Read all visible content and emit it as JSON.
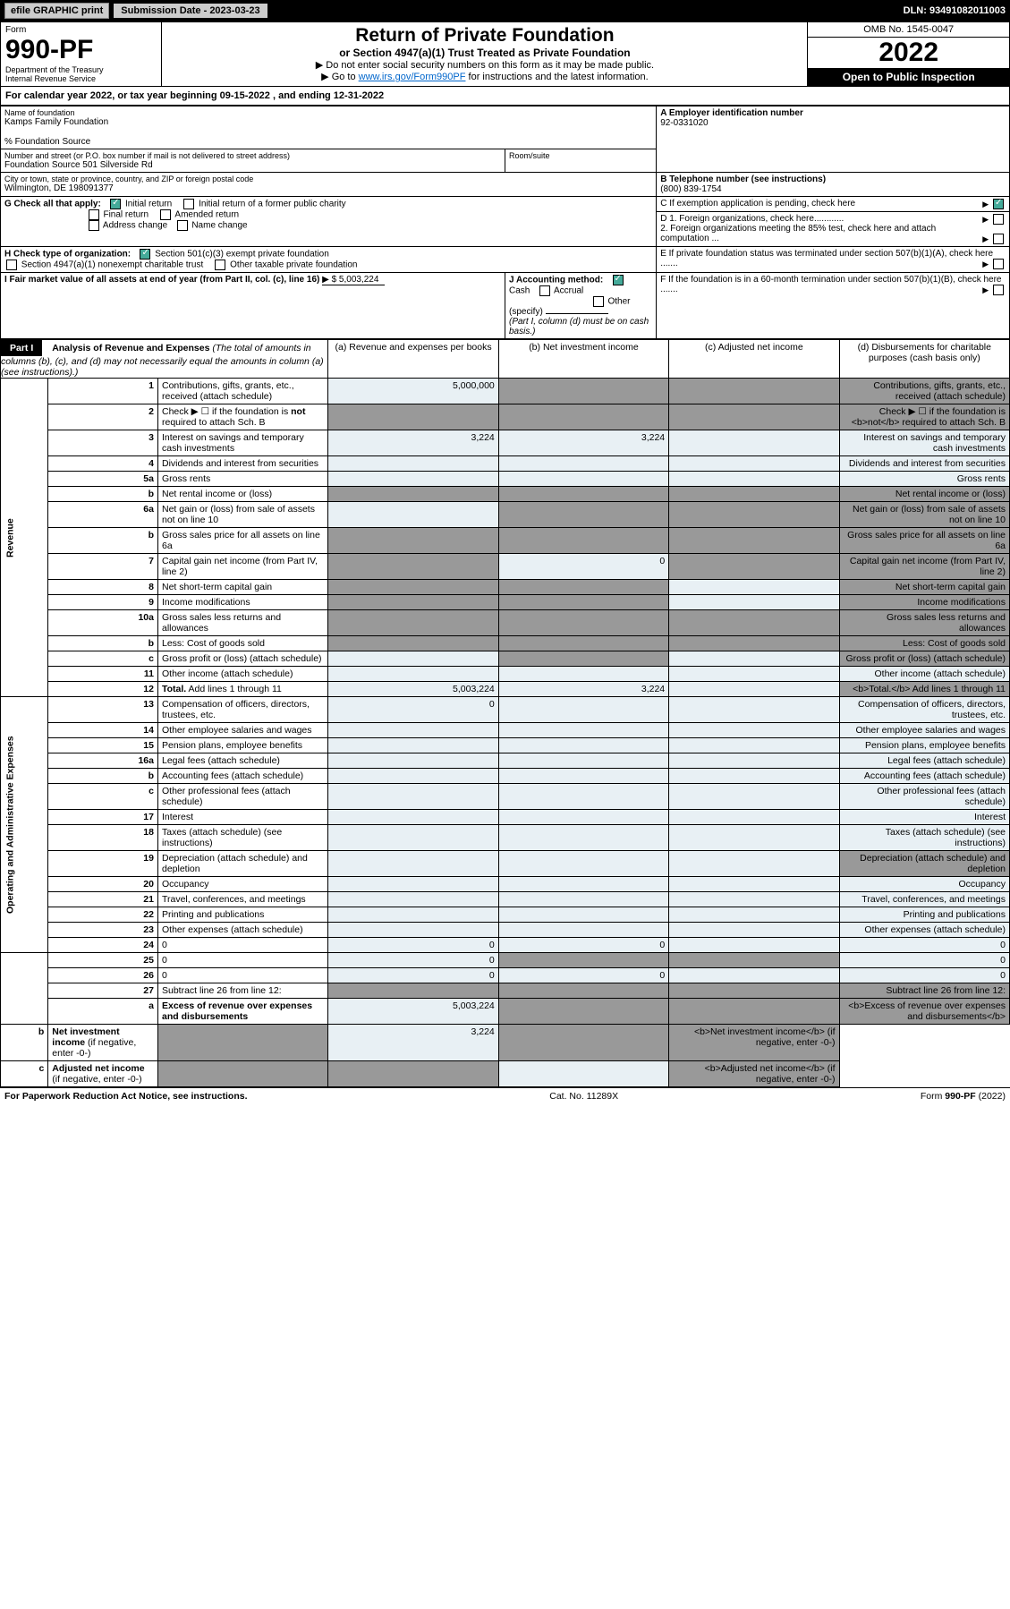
{
  "header": {
    "efile_btn": "efile GRAPHIC print",
    "sub_date_label": "Submission Date - 2023-03-23",
    "dln": "DLN: 93491082011003"
  },
  "top": {
    "form_label": "Form",
    "form_num": "990-PF",
    "dept": "Department of the Treasury",
    "irs": "Internal Revenue Service",
    "title": "Return of Private Foundation",
    "subtitle": "or Section 4947(a)(1) Trust Treated as Private Foundation",
    "note1": "▶ Do not enter social security numbers on this form as it may be made public.",
    "note2_pre": "▶ Go to ",
    "note2_link": "www.irs.gov/Form990PF",
    "note2_post": " for instructions and the latest information.",
    "omb": "OMB No. 1545-0047",
    "year": "2022",
    "open": "Open to Public Inspection"
  },
  "cal_year": "For calendar year 2022, or tax year beginning 09-15-2022                          , and ending 12-31-2022",
  "info": {
    "name_label": "Name of foundation",
    "name": "Kamps Family Foundation",
    "care_of": "% Foundation Source",
    "addr_label": "Number and street (or P.O. box number if mail is not delivered to street address)",
    "addr": "Foundation Source 501 Silverside Rd",
    "room_label": "Room/suite",
    "city_label": "City or town, state or province, country, and ZIP or foreign postal code",
    "city": "Wilmington, DE  198091377",
    "ein_label": "A Employer identification number",
    "ein": "92-0331020",
    "phone_label": "B Telephone number (see instructions)",
    "phone": "(800) 839-1754",
    "c_label": "C If exemption application is pending, check here",
    "d1_label": "D 1. Foreign organizations, check here............",
    "d2_label": "2. Foreign organizations meeting the 85% test, check here and attach computation ...",
    "e_label": "E  If private foundation status was terminated under section 507(b)(1)(A), check here .......",
    "f_label": "F  If the foundation is in a 60-month termination under section 507(b)(1)(B), check here .......",
    "g_label": "G Check all that apply:",
    "g_opts": [
      "Initial return",
      "Initial return of a former public charity",
      "Final return",
      "Amended return",
      "Address change",
      "Name change"
    ],
    "h_label": "H Check type of organization:",
    "h_opts": [
      "Section 501(c)(3) exempt private foundation",
      "Section 4947(a)(1) nonexempt charitable trust",
      "Other taxable private foundation"
    ],
    "i_label": "I Fair market value of all assets at end of year (from Part II, col. (c), line 16)",
    "i_val": "▶ $  5,003,224",
    "j_label": "J Accounting method:",
    "j_opts": [
      "Cash",
      "Accrual",
      "Other (specify)"
    ],
    "j_note": "(Part I, column (d) must be on cash basis.)"
  },
  "part1": {
    "label": "Part I",
    "title": "Analysis of Revenue and Expenses",
    "title_note": " (The total of amounts in columns (b), (c), and (d) may not necessarily equal the amounts in column (a) (see instructions).)",
    "col_a": "(a)   Revenue and expenses per books",
    "col_b": "(b)   Net investment income",
    "col_c": "(c)   Adjusted net income",
    "col_d": "(d)   Disbursements for charitable purposes (cash basis only)",
    "revenue_label": "Revenue",
    "expenses_label": "Operating and Administrative Expenses"
  },
  "rows": [
    {
      "n": "1",
      "d": "Contributions, gifts, grants, etc., received (attach schedule)",
      "a": "5,000,000",
      "b_grey": true,
      "c_grey": true,
      "d_grey": true
    },
    {
      "n": "2",
      "d": "Check ▶ ☐ if the foundation is <b>not</b> required to attach Sch. B",
      "a_grey": true,
      "b_grey": true,
      "c_grey": true,
      "d_grey": true
    },
    {
      "n": "3",
      "d": "Interest on savings and temporary cash investments",
      "a": "3,224",
      "b": "3,224"
    },
    {
      "n": "4",
      "d": "Dividends and interest from securities"
    },
    {
      "n": "5a",
      "d": "Gross rents"
    },
    {
      "n": "b",
      "d": "Net rental income or (loss)",
      "a_grey": true,
      "b_grey": true,
      "c_grey": true,
      "d_grey": true
    },
    {
      "n": "6a",
      "d": "Net gain or (loss) from sale of assets not on line 10",
      "b_grey": true,
      "c_grey": true,
      "d_grey": true
    },
    {
      "n": "b",
      "d": "Gross sales price for all assets on line 6a",
      "a_grey": true,
      "b_grey": true,
      "c_grey": true,
      "d_grey": true
    },
    {
      "n": "7",
      "d": "Capital gain net income (from Part IV, line 2)",
      "a_grey": true,
      "b": "0",
      "c_grey": true,
      "d_grey": true
    },
    {
      "n": "8",
      "d": "Net short-term capital gain",
      "a_grey": true,
      "b_grey": true,
      "d_grey": true
    },
    {
      "n": "9",
      "d": "Income modifications",
      "a_grey": true,
      "b_grey": true,
      "d_grey": true
    },
    {
      "n": "10a",
      "d": "Gross sales less returns and allowances",
      "a_grey": true,
      "b_grey": true,
      "c_grey": true,
      "d_grey": true
    },
    {
      "n": "b",
      "d": "Less: Cost of goods sold",
      "a_grey": true,
      "b_grey": true,
      "c_grey": true,
      "d_grey": true
    },
    {
      "n": "c",
      "d": "Gross profit or (loss) (attach schedule)",
      "b_grey": true,
      "d_grey": true
    },
    {
      "n": "11",
      "d": "Other income (attach schedule)"
    },
    {
      "n": "12",
      "d": "<b>Total.</b> Add lines 1 through 11",
      "a": "5,003,224",
      "b": "3,224",
      "d_grey": true
    },
    {
      "n": "13",
      "d": "Compensation of officers, directors, trustees, etc.",
      "a": "0"
    },
    {
      "n": "14",
      "d": "Other employee salaries and wages"
    },
    {
      "n": "15",
      "d": "Pension plans, employee benefits"
    },
    {
      "n": "16a",
      "d": "Legal fees (attach schedule)"
    },
    {
      "n": "b",
      "d": "Accounting fees (attach schedule)"
    },
    {
      "n": "c",
      "d": "Other professional fees (attach schedule)"
    },
    {
      "n": "17",
      "d": "Interest"
    },
    {
      "n": "18",
      "d": "Taxes (attach schedule) (see instructions)"
    },
    {
      "n": "19",
      "d": "Depreciation (attach schedule) and depletion",
      "d_grey": true
    },
    {
      "n": "20",
      "d": "Occupancy"
    },
    {
      "n": "21",
      "d": "Travel, conferences, and meetings"
    },
    {
      "n": "22",
      "d": "Printing and publications"
    },
    {
      "n": "23",
      "d": "Other expenses (attach schedule)"
    },
    {
      "n": "24",
      "d": "0",
      "a": "0",
      "b": "0"
    },
    {
      "n": "25",
      "d": "0",
      "a": "0",
      "b_grey": true,
      "c_grey": true
    },
    {
      "n": "26",
      "d": "0",
      "a": "0",
      "b": "0"
    },
    {
      "n": "27",
      "d": "Subtract line 26 from line 12:",
      "a_grey": true,
      "b_grey": true,
      "c_grey": true,
      "d_grey": true
    },
    {
      "n": "a",
      "d": "<b>Excess of revenue over expenses and disbursements</b>",
      "a": "5,003,224",
      "b_grey": true,
      "c_grey": true,
      "d_grey": true
    },
    {
      "n": "b",
      "d": "<b>Net investment income</b> (if negative, enter -0-)",
      "a_grey": true,
      "b": "3,224",
      "c_grey": true,
      "d_grey": true
    },
    {
      "n": "c",
      "d": "<b>Adjusted net income</b> (if negative, enter -0-)",
      "a_grey": true,
      "b_grey": true,
      "d_grey": true
    }
  ],
  "footer": {
    "left": "For Paperwork Reduction Act Notice, see instructions.",
    "mid": "Cat. No. 11289X",
    "right": "Form 990-PF (2022)"
  },
  "colors": {
    "val_bg": "#e8f0f4",
    "grey_bg": "#999999",
    "link": "#0066cc",
    "check_green": "#44aa88"
  }
}
